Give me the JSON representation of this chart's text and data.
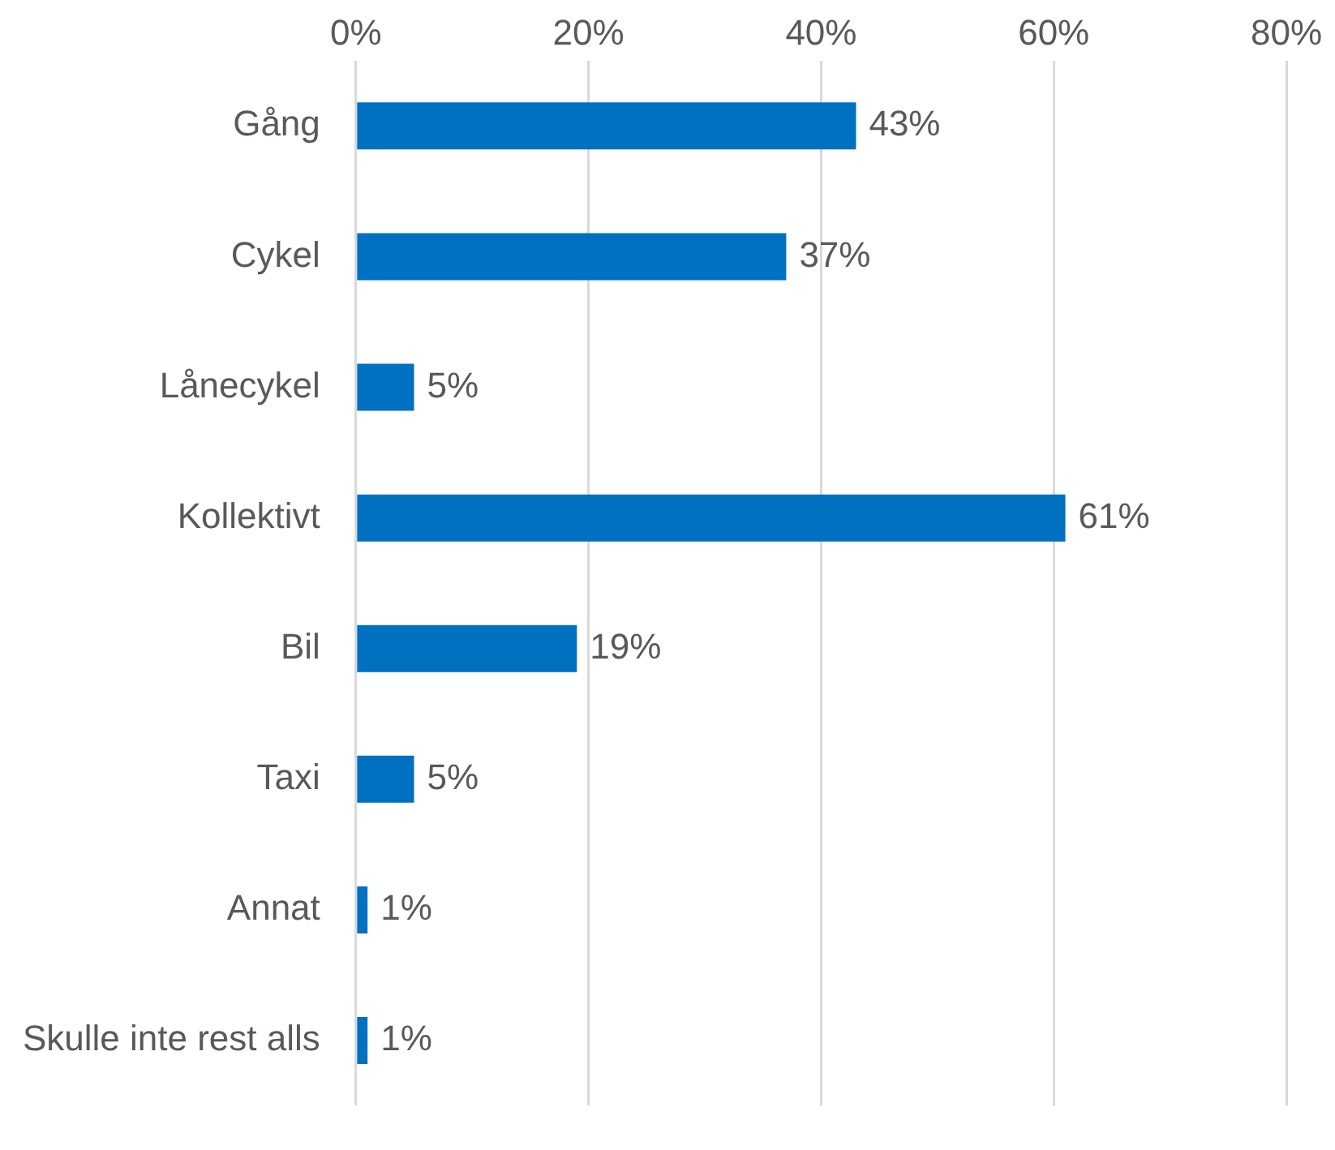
{
  "chart_data": {
    "type": "bar",
    "orientation": "horizontal",
    "categories": [
      "Gång",
      "Cykel",
      "Lånecykel",
      "Kollektivt",
      "Bil",
      "Taxi",
      "Annat",
      "Skulle inte rest alls"
    ],
    "values": [
      43,
      37,
      5,
      61,
      19,
      5,
      1,
      1
    ],
    "value_labels": [
      "43%",
      "37%",
      "5%",
      "61%",
      "19%",
      "5%",
      "1%",
      "1%"
    ],
    "color": "#0070c0",
    "xlim": [
      0,
      80
    ],
    "xticks": [
      {
        "value": 0,
        "label": "0%"
      },
      {
        "value": 20,
        "label": "20%"
      },
      {
        "value": 40,
        "label": "40%"
      },
      {
        "value": 60,
        "label": "60%"
      },
      {
        "value": 80,
        "label": "80%"
      }
    ],
    "grid": "x",
    "legend": false
  }
}
